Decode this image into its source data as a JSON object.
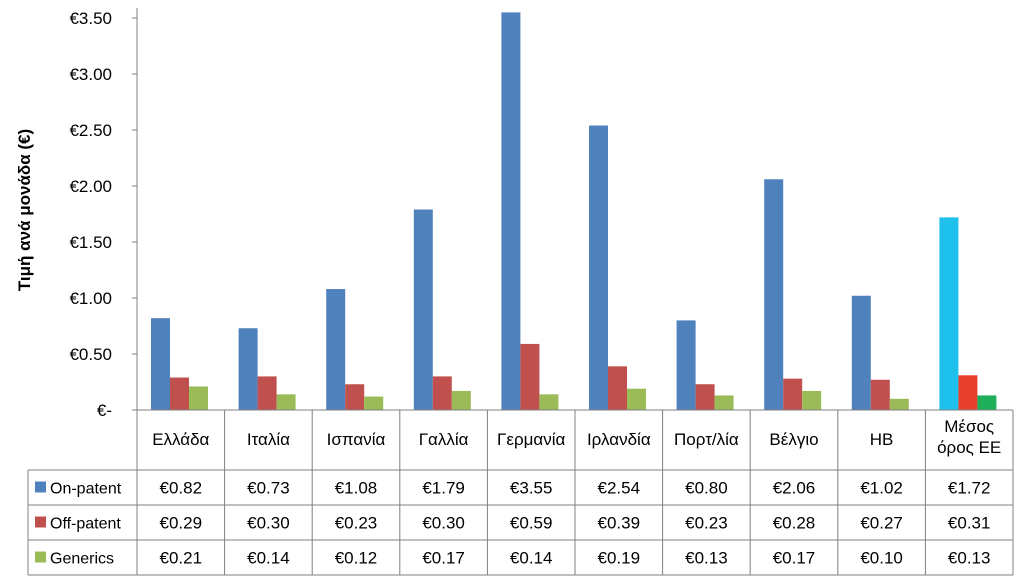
{
  "chart_data": {
    "type": "bar",
    "ylabel": "Τιμή ανά μονάδα (€)",
    "ylim": [
      0,
      3.5
    ],
    "yticks": [
      "€-",
      "€0.50",
      "€1.00",
      "€1.50",
      "€2.00",
      "€2.50",
      "€3.00",
      "€3.50"
    ],
    "grid": false,
    "legend": "data-table-left",
    "categories": [
      "Ελλάδα",
      "Ιταλία",
      "Ισπανία",
      "Γαλλία",
      "Γερμανία",
      "Ιρλανδία",
      "Πορτ/λία",
      "Βέλγιο",
      "ΗΒ",
      "Μέσος όρος ΕΕ"
    ],
    "series": [
      {
        "name": "On-patent",
        "color": "#4F81BD",
        "values": [
          0.82,
          0.73,
          1.08,
          1.79,
          3.55,
          2.54,
          0.8,
          2.06,
          1.02,
          1.72
        ],
        "labels": [
          "€0.82",
          "€0.73",
          "€1.08",
          "€1.79",
          "€3.55",
          "€2.54",
          "€0.80",
          "€2.06",
          "€1.02",
          "€1.72"
        ]
      },
      {
        "name": "Off-patent",
        "color": "#C0504D",
        "values": [
          0.29,
          0.3,
          0.23,
          0.3,
          0.59,
          0.39,
          0.23,
          0.28,
          0.27,
          0.31
        ],
        "labels": [
          "€0.29",
          "€0.30",
          "€0.23",
          "€0.30",
          "€0.59",
          "€0.39",
          "€0.23",
          "€0.28",
          "€0.27",
          "€0.31"
        ]
      },
      {
        "name": "Generics",
        "color": "#9BBB59",
        "values": [
          0.21,
          0.14,
          0.12,
          0.17,
          0.14,
          0.19,
          0.13,
          0.17,
          0.1,
          0.13
        ],
        "labels": [
          "€0.21",
          "€0.14",
          "€0.12",
          "€0.17",
          "€0.14",
          "€0.19",
          "€0.13",
          "€0.17",
          "€0.10",
          "€0.13"
        ]
      }
    ],
    "highlight_colors": [
      "#1EC1EB",
      "#E8402D",
      "#1FAF5A"
    ]
  }
}
